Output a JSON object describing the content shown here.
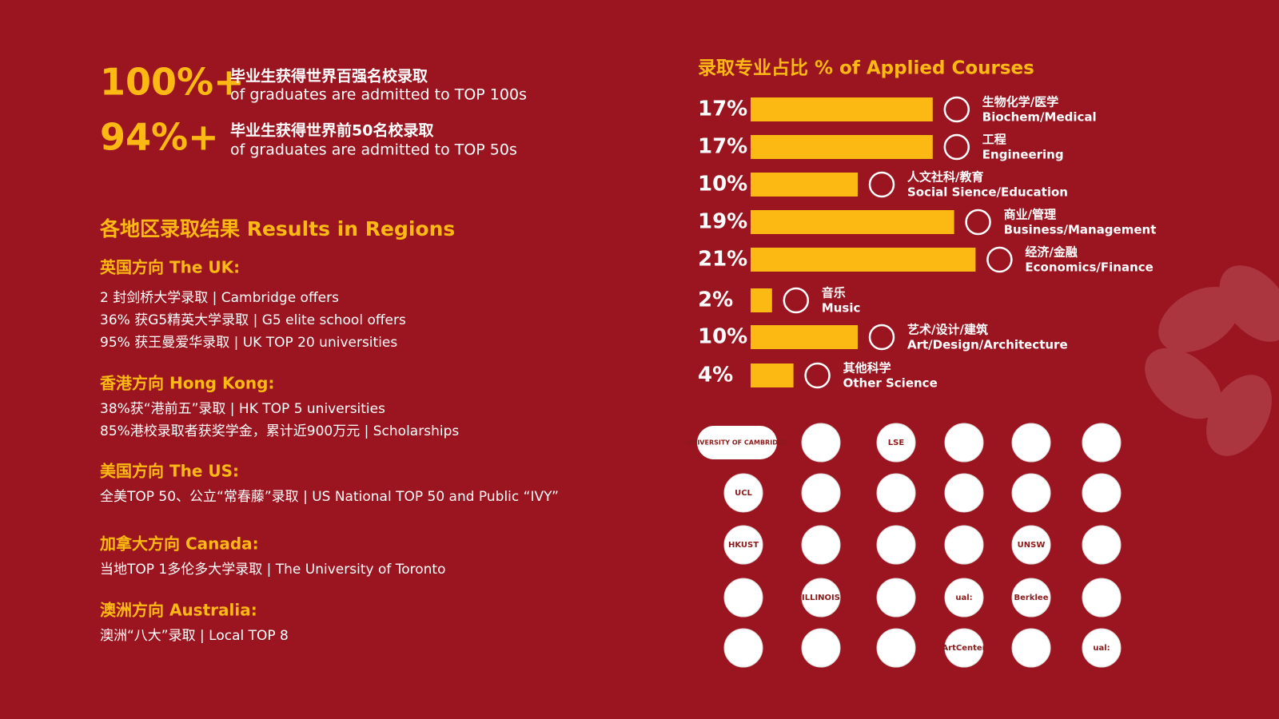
{
  "stats": [
    {
      "value": "100%+",
      "zh": "毕业生获得世界百强名校录取",
      "en": "of graduates are admitted to TOP 100s"
    },
    {
      "value": "94%+",
      "zh": "毕业生获得世界前50名校录取",
      "en": "of graduates are admitted to TOP 50s"
    }
  ],
  "regions": {
    "title": "各地区录取结果 Results in Regions",
    "sections": [
      {
        "heading": "英国方向 The UK:",
        "lines": [
          "2 封剑桥大学录取 | Cambridge offers",
          "36% 获G5精英大学录取 | G5 elite school offers",
          "95% 获王曼爱华录取 | UK TOP 20 universities"
        ]
      },
      {
        "heading": "香港方向 Hong Kong:",
        "lines": [
          "38%获“港前五”录取 | HK TOP 5 universities",
          "85%港校录取者获奖学金，累计近900万元 | Scholarships"
        ]
      },
      {
        "heading": "美国方向 The US:",
        "lines": [
          "全美TOP 50、公立“常春藤”录取 | US National TOP 50 and Public “IVY”"
        ]
      },
      {
        "heading": "加拿大方向 Canada:",
        "lines": [
          "当地TOP 1多伦多大学录取 | The University of Toronto"
        ]
      },
      {
        "heading": "澳洲方向 Australia:",
        "lines": [
          "澳洲“八大”录取 | Local TOP 8"
        ]
      }
    ]
  },
  "chart_data": {
    "type": "bar",
    "orientation": "horizontal",
    "title": "录取专业占比  % of Applied Courses",
    "categories": [
      "Biochem/Medical",
      "Engineering",
      "Social Sience/Education",
      "Business/Management",
      "Economics/Finance",
      "Music",
      "Art/Design/Architecture",
      "Other Science"
    ],
    "categories_zh": [
      "生物化学/医学",
      "工程",
      "人文社科/教育",
      "商业/管理",
      "经济/金融",
      "音乐",
      "艺术/设计/建筑",
      "其他科学"
    ],
    "values": [
      17,
      17,
      10,
      19,
      21,
      2,
      10,
      4
    ],
    "value_labels": [
      "17%",
      "17%",
      "10%",
      "19%",
      "21%",
      "2%",
      "10%",
      "4%"
    ],
    "color": "#fdb913"
  },
  "logos": [
    "UNIVERSITY OF CAMBRIDGE",
    null,
    "LSE",
    null,
    null,
    null,
    "UCL",
    null,
    null,
    null,
    null,
    null,
    "HKUST",
    null,
    null,
    null,
    "UNSW",
    null,
    null,
    "ILLINOIS",
    null,
    "ual:",
    "Berklee",
    null,
    null,
    null,
    null,
    "ArtCenter",
    null,
    "ual:"
  ]
}
